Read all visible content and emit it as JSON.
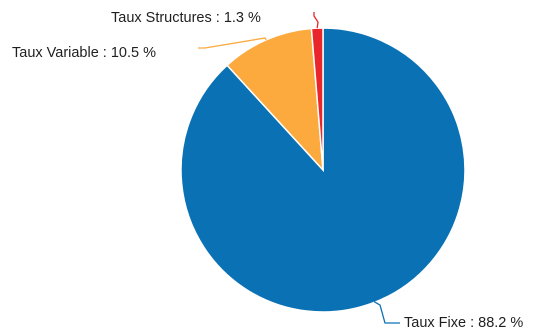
{
  "chart_data": {
    "type": "pie",
    "slices": [
      {
        "label": "Taux Fixe : 88.2 %",
        "value": 88.2,
        "color": "#0a72b4"
      },
      {
        "label": "Taux Variable : 10.5 %",
        "value": 10.5,
        "color": "#fca93e"
      },
      {
        "label": "Taux Structures : 1.3 %",
        "value": 1.3,
        "color": "#e8262c"
      }
    ]
  }
}
